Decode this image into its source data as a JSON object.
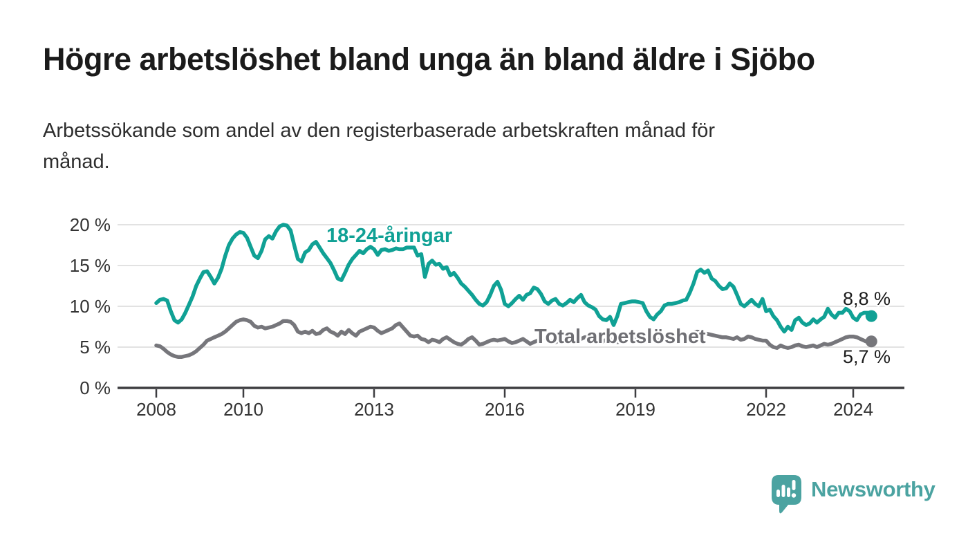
{
  "header": {
    "title": "Högre arbetslöshet bland unga än bland äldre i Sjöbo",
    "subtitle": "Arbetssökande som andel av den registerbaserade arbetskraften månad för månad.",
    "subtitle_lines": [
      "Arbetssökande som andel av den registerbaserade arbetskraften månad för",
      "månad."
    ]
  },
  "chart_data": {
    "type": "line",
    "title": "Högre arbetslöshet bland unga än bland äldre i Sjöbo",
    "xlabel": "",
    "ylabel": "",
    "unit": "%",
    "grid": "horizontal",
    "ylim": [
      0,
      21
    ],
    "y_tick_values": [
      0,
      5,
      10,
      15,
      20
    ],
    "y_tick_labels": [
      "0 %",
      "5 %",
      "10 %",
      "15 %",
      "20 %"
    ],
    "x_tick_years": [
      2008,
      2010,
      2013,
      2016,
      2019,
      2022,
      2024
    ],
    "x_start": "2008-01",
    "x_end": "2024-06",
    "frequency": "monthly",
    "legend_position": "inline-labels",
    "series": [
      {
        "name": "18-24-åringar",
        "color": "#10a195",
        "end_label": "8,8 %",
        "end_value": 8.8,
        "values": [
          10.4,
          10.8,
          10.9,
          10.7,
          9.4,
          8.3,
          8.0,
          8.4,
          9.2,
          10.2,
          11.2,
          12.5,
          13.4,
          14.2,
          14.3,
          13.6,
          12.8,
          13.5,
          14.6,
          16.2,
          17.5,
          18.3,
          18.8,
          19.1,
          19.0,
          18.4,
          17.3,
          16.2,
          15.9,
          16.8,
          18.2,
          18.6,
          18.3,
          19.2,
          19.8,
          20.0,
          19.9,
          19.3,
          17.5,
          15.8,
          15.5,
          16.6,
          16.9,
          17.6,
          17.9,
          17.2,
          16.5,
          15.9,
          15.3,
          14.4,
          13.4,
          13.2,
          14.1,
          15.1,
          15.8,
          16.3,
          16.8,
          16.5,
          17.0,
          17.3,
          17.0,
          16.3,
          16.9,
          17.0,
          16.8,
          16.9,
          17.1,
          17.0,
          17.0,
          17.2,
          17.2,
          17.2,
          16.2,
          16.4,
          13.6,
          15.2,
          15.6,
          15.1,
          15.2,
          14.6,
          14.8,
          13.8,
          14.1,
          13.5,
          12.8,
          12.4,
          11.9,
          11.4,
          10.8,
          10.3,
          10.1,
          10.5,
          11.4,
          12.5,
          13.0,
          12.0,
          10.3,
          10.0,
          10.4,
          10.9,
          11.3,
          10.8,
          11.4,
          11.6,
          12.3,
          12.1,
          11.5,
          10.6,
          10.3,
          10.7,
          10.9,
          10.3,
          10.1,
          10.4,
          10.8,
          10.5,
          11.0,
          11.4,
          10.5,
          10.1,
          9.9,
          9.6,
          8.8,
          8.4,
          8.3,
          8.7,
          7.7,
          8.8,
          10.3,
          10.4,
          10.5,
          10.6,
          10.6,
          10.5,
          10.4,
          9.4,
          8.7,
          8.4,
          9.0,
          9.4,
          10.1,
          10.3,
          10.3,
          10.4,
          10.5,
          10.7,
          10.8,
          11.7,
          12.8,
          14.2,
          14.5,
          14.1,
          14.4,
          13.4,
          13.1,
          12.5,
          12.1,
          12.2,
          12.8,
          12.4,
          11.4,
          10.3,
          10.0,
          10.4,
          10.8,
          10.3,
          10.0,
          10.9,
          9.4,
          9.6,
          8.8,
          8.3,
          7.5,
          6.9,
          7.5,
          7.1,
          8.3,
          8.6,
          8.0,
          7.7,
          7.9,
          8.4,
          8.0,
          8.4,
          8.7,
          9.7,
          9.0,
          8.6,
          9.2,
          9.2,
          9.7,
          9.4,
          8.6,
          8.3,
          9.0,
          9.2,
          9.2,
          8.8
        ]
      },
      {
        "name": "Total arbetslöshet",
        "color": "#76767b",
        "end_label": "5,7 %",
        "end_value": 5.7,
        "values": [
          5.2,
          5.1,
          4.8,
          4.4,
          4.1,
          3.9,
          3.8,
          3.8,
          3.9,
          4.0,
          4.2,
          4.5,
          4.9,
          5.3,
          5.8,
          6.0,
          6.2,
          6.4,
          6.6,
          6.9,
          7.3,
          7.7,
          8.1,
          8.3,
          8.4,
          8.3,
          8.1,
          7.6,
          7.4,
          7.5,
          7.3,
          7.4,
          7.5,
          7.7,
          7.9,
          8.2,
          8.2,
          8.1,
          7.7,
          6.9,
          6.7,
          6.9,
          6.7,
          7.0,
          6.6,
          6.7,
          7.1,
          7.3,
          6.9,
          6.7,
          6.4,
          6.9,
          6.6,
          7.1,
          6.7,
          6.4,
          6.9,
          7.1,
          7.3,
          7.5,
          7.4,
          7.0,
          6.7,
          6.9,
          7.1,
          7.3,
          7.7,
          7.9,
          7.4,
          6.9,
          6.4,
          6.3,
          6.4,
          6.0,
          5.9,
          5.6,
          5.9,
          5.8,
          5.6,
          6.0,
          6.2,
          5.9,
          5.6,
          5.4,
          5.3,
          5.6,
          6.0,
          6.2,
          5.8,
          5.3,
          5.4,
          5.6,
          5.8,
          5.9,
          5.8,
          5.9,
          6.0,
          5.7,
          5.5,
          5.6,
          5.8,
          6.0,
          5.7,
          5.4,
          5.6,
          5.8,
          6.0,
          6.1,
          5.9,
          5.7,
          5.6,
          5.8,
          6.0,
          6.1,
          5.9,
          5.7,
          5.8,
          6.0,
          6.2,
          6.3,
          6.1,
          5.9,
          5.8,
          5.7,
          5.9,
          6.0,
          5.8,
          5.6,
          5.7,
          5.9,
          6.0,
          6.1,
          6.0,
          5.8,
          5.6,
          5.7,
          5.9,
          6.0,
          5.8,
          5.9,
          6.1,
          6.2,
          6.0,
          5.9,
          6.0,
          6.1,
          6.3,
          6.6,
          6.8,
          6.9,
          6.8,
          6.7,
          6.6,
          6.5,
          6.4,
          6.3,
          6.2,
          6.2,
          6.1,
          6.0,
          6.2,
          5.9,
          6.0,
          6.3,
          6.2,
          6.0,
          5.9,
          5.8,
          5.8,
          5.3,
          5.0,
          4.9,
          5.2,
          5.0,
          4.9,
          5.0,
          5.2,
          5.3,
          5.1,
          5.0,
          5.1,
          5.2,
          5.0,
          5.2,
          5.4,
          5.3,
          5.4,
          5.6,
          5.8,
          6.0,
          6.2,
          6.3,
          6.3,
          6.2,
          6.0,
          5.8,
          5.6,
          5.7
        ]
      }
    ]
  },
  "footer": {
    "brand": "Newsworthy"
  },
  "colors": {
    "teal_line": "#10a195",
    "gray_line": "#76767b",
    "title_text": "#1b1b1b",
    "subtitle_text": "#2e2e2e",
    "axis_text": "#333333",
    "gridline": "#d9d9d9",
    "axis_line": "#3d3d40",
    "logo_teal": "#4ba3a1",
    "background": "#ffffff"
  }
}
